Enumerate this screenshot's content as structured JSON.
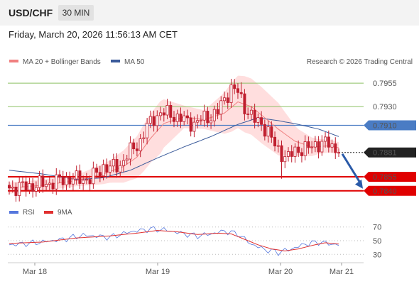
{
  "header": {
    "symbol": "USD/CHF",
    "timeframe": "30 MIN",
    "datetime": "Friday, March 20, 2026 11:56:13 AM CET"
  },
  "legend": {
    "ma20_label": "MA 20 + Bollinger Bands",
    "ma50_label": "MA 50",
    "copyright": "Research © 2026 Trading Central",
    "rsi_label": "RSI",
    "ma9_label": "9MA"
  },
  "colors": {
    "candle": "#bf1e2e",
    "ma20": "#f08080",
    "band_fill": "#ffd6d6",
    "ma50": "#3a5a9a",
    "resistance": "#8cc063",
    "resistance_text": "#5a9a1a",
    "pivot": "#4a7cc4",
    "support": "#e00000",
    "current": "#222222",
    "rsi": "#5577dd",
    "rsi_ma": "#e03030",
    "forecast_arrow": "#2a5aa8"
  },
  "chart_data": [
    {
      "type": "candlestick",
      "title": "USD/CHF 30 MIN",
      "x_ticks": [
        "Mar 18",
        "Mar 19",
        "Mar 20",
        "Mar 21"
      ],
      "ylim": [
        0.783,
        0.7968
      ],
      "levels": [
        {
          "name": "resistance 2",
          "value": 0.7955,
          "label": "0.7955",
          "style": "resistance"
        },
        {
          "name": "resistance 1",
          "value": 0.793,
          "label": "0.7930",
          "style": "resistance"
        },
        {
          "name": "pivot",
          "value": 0.791,
          "label": "0.7910",
          "style": "pivot"
        },
        {
          "name": "last price",
          "value": 0.7881,
          "label": "0.7881",
          "style": "current"
        },
        {
          "name": "support 1",
          "value": 0.7855,
          "label": "0.7855",
          "style": "support"
        },
        {
          "name": "support 2",
          "value": 0.784,
          "label": "0.7840",
          "style": "support"
        }
      ],
      "close_waypoints": [
        [
          0,
          0.7843
        ],
        [
          6,
          0.7845
        ],
        [
          10,
          0.7847
        ],
        [
          14,
          0.785
        ],
        [
          18,
          0.7853
        ],
        [
          20,
          0.7852
        ],
        [
          24,
          0.7853
        ],
        [
          26,
          0.7858
        ],
        [
          28,
          0.7866
        ],
        [
          30,
          0.7864
        ],
        [
          33,
          0.7868
        ],
        [
          36,
          0.7882
        ],
        [
          39,
          0.7893
        ],
        [
          41,
          0.7908
        ],
        [
          43,
          0.7918
        ],
        [
          45,
          0.7923
        ],
        [
          48,
          0.7922
        ],
        [
          52,
          0.7915
        ],
        [
          55,
          0.7912
        ],
        [
          57,
          0.7916
        ],
        [
          60,
          0.792
        ],
        [
          62,
          0.7924
        ],
        [
          64,
          0.7938
        ],
        [
          66,
          0.795
        ],
        [
          68,
          0.7945
        ],
        [
          70,
          0.793
        ],
        [
          73,
          0.7915
        ],
        [
          75,
          0.7912
        ],
        [
          77,
          0.7903
        ],
        [
          79,
          0.7888
        ],
        [
          81,
          0.788
        ],
        [
          83,
          0.7875
        ],
        [
          85,
          0.7883
        ],
        [
          87,
          0.7885
        ],
        [
          89,
          0.7885
        ],
        [
          91,
          0.789
        ],
        [
          93,
          0.7891
        ],
        [
          95,
          0.789
        ],
        [
          97,
          0.7885
        ],
        [
          98,
          0.7881
        ]
      ],
      "ma20_waypoints": [
        [
          0,
          0.7843
        ],
        [
          10,
          0.7846
        ],
        [
          20,
          0.7851
        ],
        [
          28,
          0.7858
        ],
        [
          34,
          0.7866
        ],
        [
          38,
          0.7876
        ],
        [
          42,
          0.7896
        ],
        [
          46,
          0.7912
        ],
        [
          52,
          0.7919
        ],
        [
          58,
          0.7916
        ],
        [
          64,
          0.7923
        ],
        [
          68,
          0.7935
        ],
        [
          72,
          0.793
        ],
        [
          76,
          0.7918
        ],
        [
          80,
          0.7906
        ],
        [
          85,
          0.7893
        ],
        [
          90,
          0.7887
        ],
        [
          95,
          0.7888
        ],
        [
          98,
          0.7886
        ]
      ],
      "ma50_waypoints": [
        [
          0,
          0.7862
        ],
        [
          10,
          0.7858
        ],
        [
          20,
          0.7852
        ],
        [
          28,
          0.7854
        ],
        [
          36,
          0.7862
        ],
        [
          44,
          0.7875
        ],
        [
          52,
          0.7887
        ],
        [
          60,
          0.7898
        ],
        [
          68,
          0.7911
        ],
        [
          74,
          0.7918
        ],
        [
          80,
          0.7915
        ],
        [
          86,
          0.7911
        ],
        [
          92,
          0.7906
        ],
        [
          98,
          0.7898
        ]
      ],
      "band_width_waypoints": [
        [
          0,
          0.0006
        ],
        [
          20,
          0.0006
        ],
        [
          30,
          0.0012
        ],
        [
          40,
          0.0025
        ],
        [
          45,
          0.0028
        ],
        [
          52,
          0.0012
        ],
        [
          58,
          0.001
        ],
        [
          66,
          0.0026
        ],
        [
          70,
          0.003
        ],
        [
          75,
          0.003
        ],
        [
          80,
          0.0028
        ],
        [
          86,
          0.0014
        ],
        [
          92,
          0.0008
        ],
        [
          98,
          0.0006
        ]
      ],
      "forecast": {
        "from": 0.7881,
        "to": 0.784
      }
    },
    {
      "type": "line",
      "title": "RSI",
      "ylim": [
        22,
        78
      ],
      "y_ticks": [
        70,
        50,
        30
      ],
      "series": [
        {
          "name": "RSI",
          "waypoints": [
            [
              0,
              44
            ],
            [
              8,
              47
            ],
            [
              16,
              52
            ],
            [
              22,
              58
            ],
            [
              30,
              55
            ],
            [
              36,
              63
            ],
            [
              42,
              67
            ],
            [
              46,
              66
            ],
            [
              52,
              60
            ],
            [
              56,
              57
            ],
            [
              60,
              60
            ],
            [
              64,
              64
            ],
            [
              68,
              60
            ],
            [
              72,
              45
            ],
            [
              76,
              37
            ],
            [
              80,
              33
            ],
            [
              84,
              38
            ],
            [
              88,
              45
            ],
            [
              92,
              48
            ],
            [
              96,
              45
            ],
            [
              98,
              44
            ]
          ]
        },
        {
          "name": "9MA",
          "waypoints": [
            [
              0,
              46
            ],
            [
              10,
              48
            ],
            [
              20,
              54
            ],
            [
              30,
              57
            ],
            [
              38,
              61
            ],
            [
              44,
              65
            ],
            [
              50,
              63
            ],
            [
              56,
              59
            ],
            [
              62,
              61
            ],
            [
              66,
              60
            ],
            [
              70,
              52
            ],
            [
              74,
              44
            ],
            [
              78,
              38
            ],
            [
              82,
              35
            ],
            [
              86,
              38
            ],
            [
              90,
              43
            ],
            [
              94,
              47
            ],
            [
              98,
              45
            ]
          ]
        }
      ]
    }
  ]
}
